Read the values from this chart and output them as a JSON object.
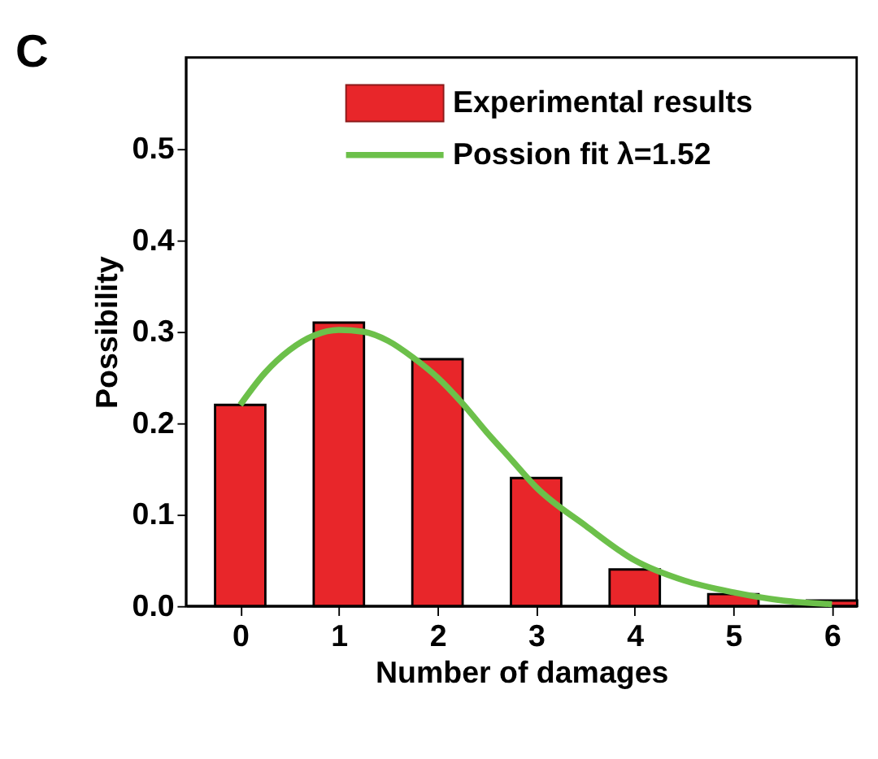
{
  "chart_data": {
    "type": "bar",
    "title": "C",
    "xlabel": "Number of damages",
    "ylabel": "Possibility",
    "x": [
      0,
      1,
      2,
      3,
      4,
      5,
      6
    ],
    "series": [
      {
        "name": "Experimental results",
        "color": "#e8262a",
        "values": [
          0.22,
          0.31,
          0.27,
          0.14,
          0.04,
          0.013,
          0.006
        ]
      },
      {
        "name": "Possion fit λ=1.52",
        "type": "line",
        "color": "#6cc04a",
        "x": [
          0,
          0.25,
          0.5,
          0.75,
          1,
          1.25,
          1.5,
          1.75,
          2,
          2.25,
          2.5,
          2.75,
          3,
          3.5,
          4,
          4.5,
          5,
          5.5,
          6
        ],
        "values": [
          0.22,
          0.255,
          0.28,
          0.296,
          0.302,
          0.3,
          0.29,
          0.272,
          0.25,
          0.222,
          0.19,
          0.16,
          0.13,
          0.088,
          0.05,
          0.028,
          0.015,
          0.006,
          0.002
        ]
      }
    ],
    "xlim": [
      -0.55,
      6.25
    ],
    "xticks": [
      0,
      1,
      2,
      3,
      4,
      5,
      6
    ],
    "ylim": [
      0,
      0.6
    ],
    "yticks": [
      {
        "value": 0,
        "label": "0.0"
      },
      0.1,
      0.2,
      0.3,
      0.4,
      0.5
    ],
    "grid": false,
    "legend": "top right"
  }
}
